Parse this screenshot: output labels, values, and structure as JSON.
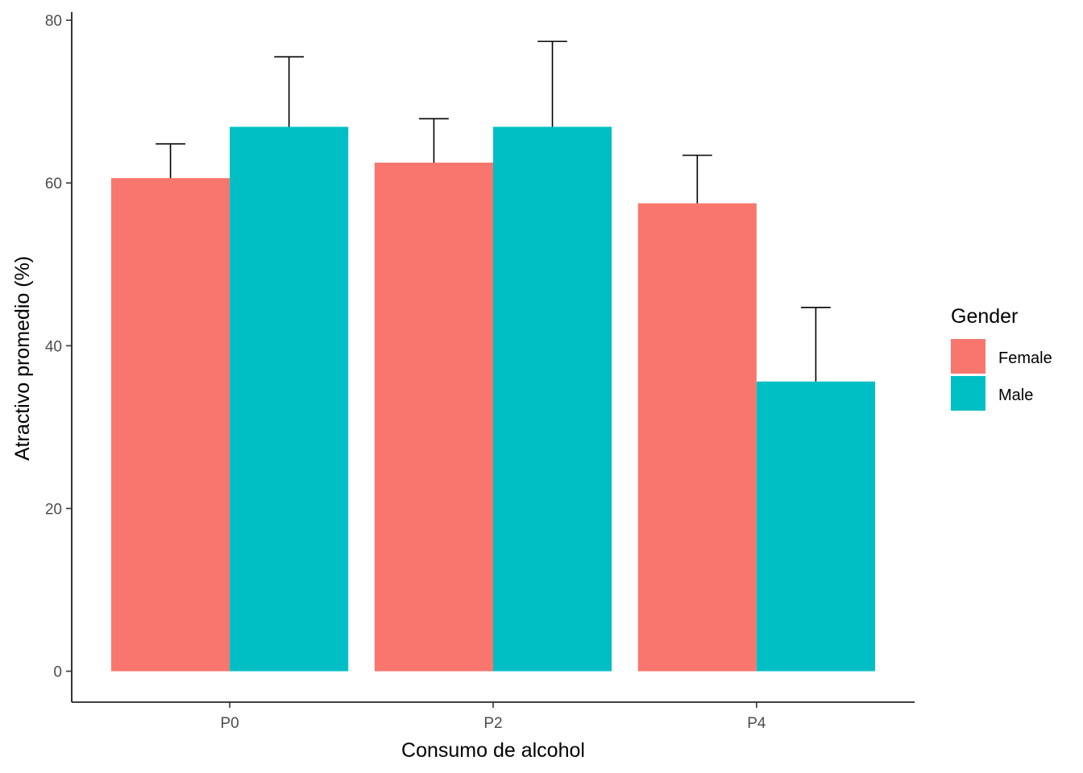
{
  "chart_data": {
    "type": "bar",
    "xlabel": "Consumo de alcohol",
    "ylabel": "Atractivo promedio (%)",
    "categories": [
      "P0",
      "P2",
      "P4"
    ],
    "ylim": [
      -3.8,
      81
    ],
    "yticks": [
      0,
      20,
      40,
      60,
      80
    ],
    "grid": false,
    "legend": {
      "title": "Gender",
      "position": "right"
    },
    "series": [
      {
        "name": "Female",
        "color": "#F8766D",
        "values": [
          60.6,
          62.5,
          57.5
        ],
        "error_upper": [
          64.8,
          67.9,
          63.4
        ]
      },
      {
        "name": "Male",
        "color": "#00BFC4",
        "values": [
          66.9,
          66.9,
          35.6
        ],
        "error_upper": [
          75.5,
          77.4,
          44.7
        ]
      }
    ]
  }
}
